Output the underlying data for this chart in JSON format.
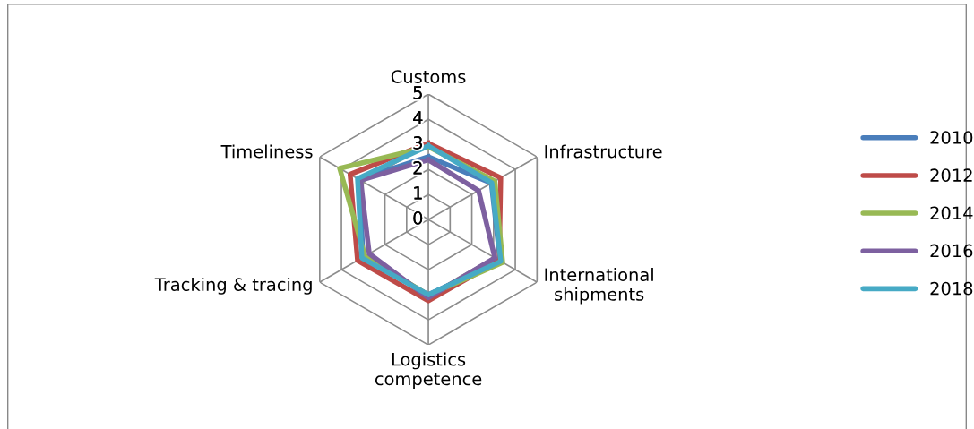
{
  "chart_data": {
    "type": "radar",
    "categories": [
      "Customs",
      "Infrastructure",
      "International\nshipments",
      "Logistics\ncompetence",
      "Tracking & tracing",
      "Timeliness"
    ],
    "ylim": [
      0,
      5
    ],
    "yticks": [
      0,
      1,
      2,
      3,
      4,
      5
    ],
    "grid": true,
    "legend": "right",
    "marker": "none",
    "line_style": "solid",
    "series": [
      {
        "name": "2010",
        "color": "#4a7ebb",
        "values": [
          2.5,
          2.9,
          3.3,
          3.0,
          3.0,
          3.2
        ]
      },
      {
        "name": "2012",
        "color": "#be4b48",
        "values": [
          3.04,
          3.33,
          3.26,
          3.24,
          3.26,
          3.6
        ]
      },
      {
        "name": "2014",
        "color": "#98b954",
        "values": [
          2.9,
          3.06,
          3.42,
          3.02,
          2.92,
          4.08
        ]
      },
      {
        "name": "2016",
        "color": "#7d60a0",
        "values": [
          2.38,
          2.31,
          3.06,
          3.12,
          2.72,
          3.12
        ]
      },
      {
        "name": "2018",
        "color": "#46aac5",
        "values": [
          2.94,
          2.92,
          3.33,
          3.0,
          3.06,
          3.26
        ]
      }
    ]
  }
}
